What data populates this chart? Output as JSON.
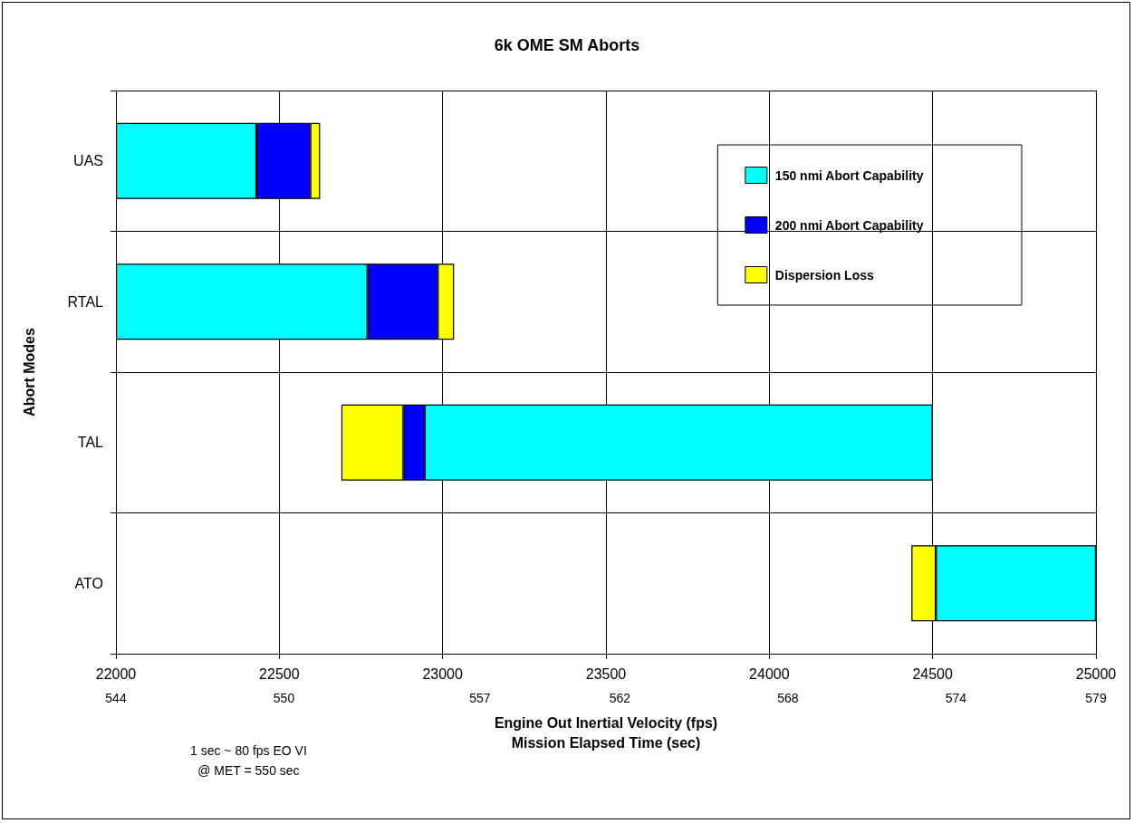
{
  "chart_data": {
    "type": "bar",
    "orientation": "horizontal",
    "title": "6k OME SM Aborts",
    "xlabel": "Engine Out Inertial Velocity (fps)",
    "x2label": "Mission Elapsed Time (sec)",
    "ylabel": "Abort Modes",
    "categories": [
      "UAS",
      "RTAL",
      "TAL",
      "ATO"
    ],
    "series": [
      {
        "name": "150 nmi Abort Capability",
        "color": "#00ffff",
        "base": [
          22000,
          22000,
          22945,
          24510
        ],
        "values": [
          430,
          770,
          1555,
          490
        ]
      },
      {
        "name": "200 nmi Abort Capability",
        "color": "#0000ff",
        "base": [
          22430,
          22770,
          22880,
          null
        ],
        "values": [
          165,
          215,
          65,
          null
        ]
      },
      {
        "name": "Dispersion Loss",
        "color": "#ffff00",
        "base": [
          22595,
          22985,
          22690,
          24435
        ],
        "values": [
          30,
          50,
          190,
          75
        ]
      }
    ],
    "xlim": [
      22000,
      25000
    ],
    "xticks": [
      22000,
      22500,
      23000,
      23500,
      24000,
      24500,
      25000
    ],
    "x2lim": [
      544,
      579
    ],
    "x2ticks": [
      544,
      550,
      557,
      562,
      568,
      574,
      579
    ],
    "annotations": [
      "1 sec ~ 80 fps EO VI\n@ MET = 550 sec"
    ],
    "grid": true,
    "legend": "top right"
  }
}
